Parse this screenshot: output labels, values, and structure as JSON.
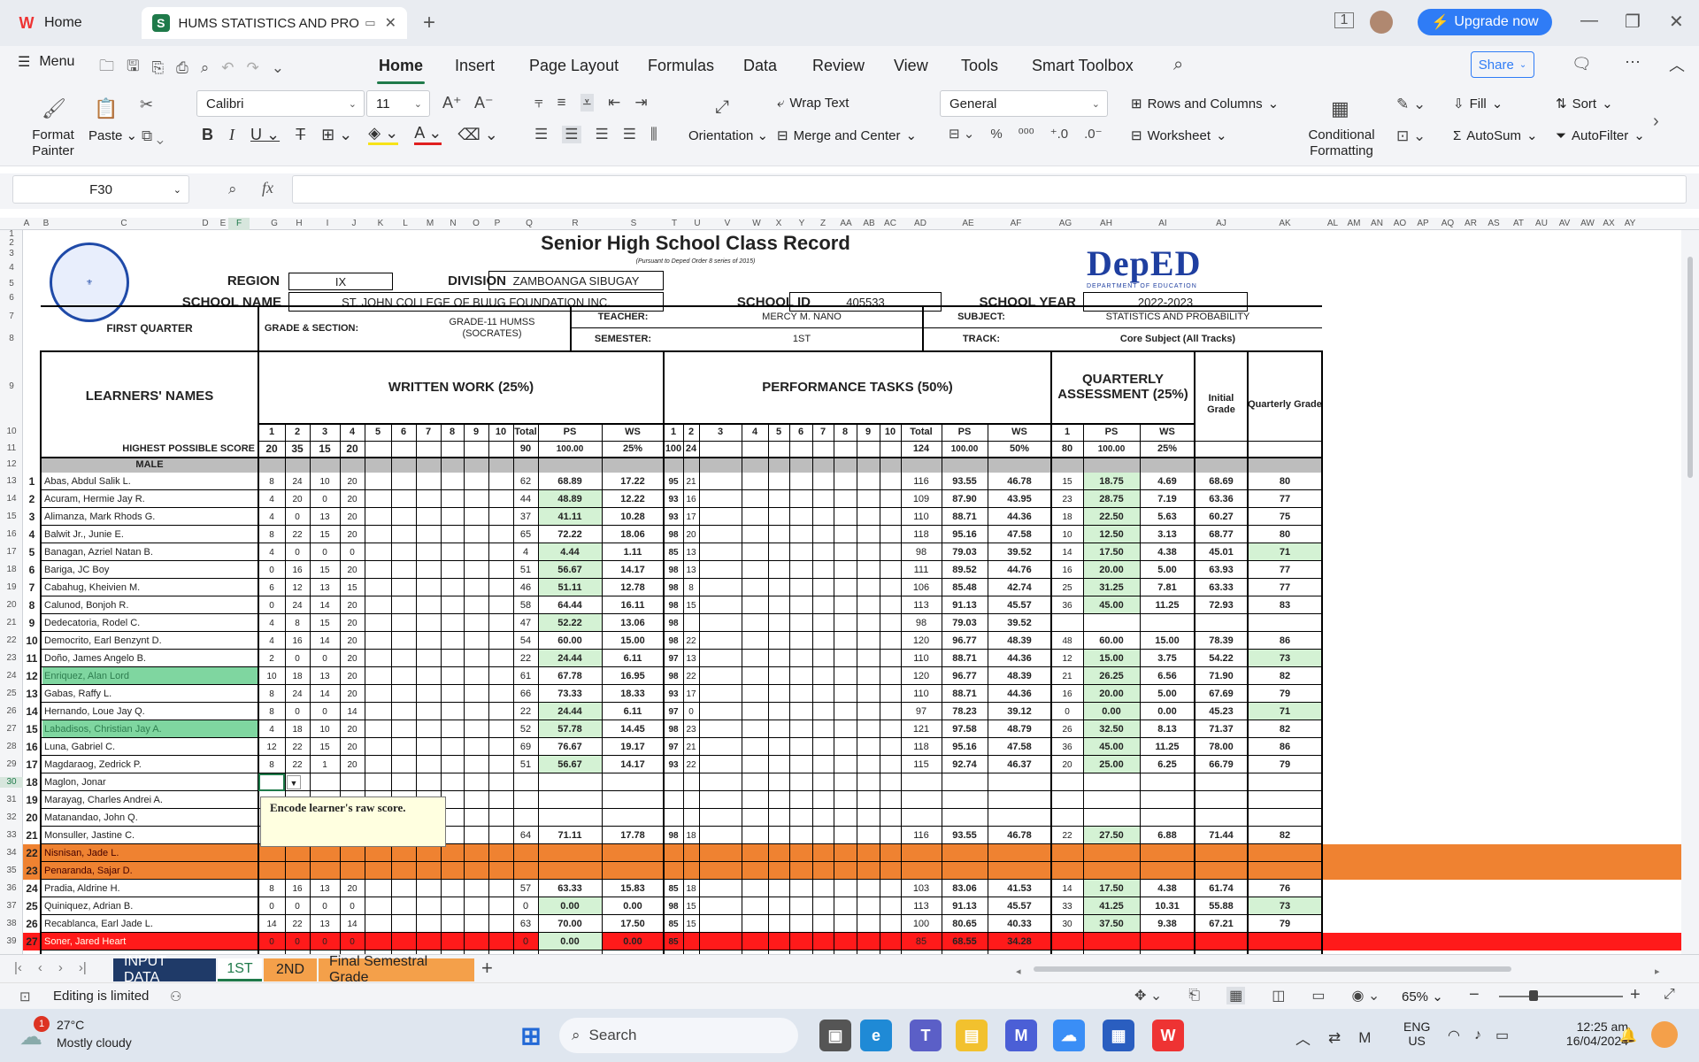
{
  "browser": {
    "tabs": [
      {
        "label": "Home",
        "icon": "wps-logo-icon"
      },
      {
        "label": "HUMS STATISTICS AND PROBA",
        "icon": "spreadsheet-icon"
      }
    ],
    "upgrade_label": "Upgrade now"
  },
  "menu": {
    "menu_label": "Menu",
    "items": [
      "Home",
      "Insert",
      "Page Layout",
      "Formulas",
      "Data",
      "Review",
      "View",
      "Tools",
      "Smart Toolbox"
    ],
    "share_label": "Share"
  },
  "ribbon": {
    "format_painter": "Format Painter",
    "paste": "Paste",
    "font_name": "Calibri",
    "font_size": "11",
    "wrap_text": "Wrap Text",
    "orientation": "Orientation",
    "merge_center": "Merge and Center",
    "number_format": "General",
    "rows_columns": "Rows and Columns",
    "worksheet": "Worksheet",
    "conditional_formatting": "Conditional Formatting",
    "fill": "Fill",
    "sort": "Sort",
    "autosum": "AutoSum",
    "autofilter": "AutoFilter"
  },
  "formula_bar": {
    "cell_ref": "F30",
    "fx": "fx",
    "value": ""
  },
  "columns": [
    "A",
    "B",
    "C",
    "D",
    "E",
    "F",
    "G",
    "H",
    "I",
    "J",
    "K",
    "L",
    "M",
    "N",
    "O",
    "P",
    "Q",
    "R",
    "S",
    "T",
    "U",
    "V",
    "W",
    "X",
    "Y",
    "Z",
    "AA",
    "AB",
    "AC",
    "AD",
    "AE",
    "AF",
    "AG",
    "AH",
    "AI",
    "AJ",
    "AK",
    "AL",
    "AM",
    "AN",
    "AO",
    "AP",
    "AQ",
    "AR",
    "AS",
    "AT",
    "AU",
    "AV",
    "AW",
    "AX",
    "AY"
  ],
  "rows": [
    "1",
    "2",
    "3",
    "4",
    "5",
    "6",
    "7",
    "8",
    "9",
    "10",
    "11",
    "12",
    "13",
    "14",
    "15",
    "16",
    "17",
    "18",
    "19",
    "20",
    "21",
    "22",
    "23",
    "24",
    "25",
    "26",
    "27",
    "28",
    "29",
    "30",
    "31",
    "32",
    "33",
    "34",
    "35",
    "36",
    "37",
    "38",
    "39"
  ],
  "record": {
    "title": "Senior High School Class Record",
    "subtitle": "(Pursuant to Deped Order 8 series of 2015)",
    "region_label": "REGION",
    "region": "IX",
    "division_label": "DIVISION",
    "division": "ZAMBOANGA SIBUGAY",
    "school_name_label": "SCHOOL NAME",
    "school_name": "ST. JOHN COLLEGE OF BUUG FOUNDATION INC.",
    "school_id_label": "SCHOOL ID",
    "school_id": "405533",
    "school_year_label": "SCHOOL YEAR",
    "school_year": "2022-2023",
    "deped_logo": "DepED",
    "deped_sub": "DEPARTMENT OF EDUCATION",
    "quarter": "FIRST QUARTER",
    "grade_section_label": "GRADE & SECTION:",
    "grade_section": "GRADE-11 HUMSS (SOCRATES)",
    "teacher_label": "TEACHER:",
    "teacher": "MERCY M. NANO",
    "subject_label": "SUBJECT:",
    "subject": "STATISTICS AND PROBABILITY",
    "semester_label": "SEMESTER:",
    "semester": "1ST",
    "track_label": "TRACK:",
    "track": "Core Subject (All Tracks)",
    "learners_names": "LEARNERS' NAMES",
    "written_work": "WRITTEN WORK (25%)",
    "performance_tasks": "PERFORMANCE TASKS (50%)",
    "quarterly_assessment": "QUARTERLY ASSESSMENT (25%)",
    "initial_grade": "Initial Grade",
    "quarterly_grade": "Quarterly Grade",
    "total": "Total",
    "ps": "PS",
    "ws": "WS",
    "hps_label": "HIGHEST POSSIBLE SCORE",
    "hps": {
      "ww": [
        "20",
        "35",
        "15",
        "20"
      ],
      "ww_total": "90",
      "ww_ps": "100.00",
      "ww_ws": "25%",
      "pt": [
        "100",
        "24"
      ],
      "pt_total": "124",
      "pt_ps": "100.00",
      "pt_ws": "50%",
      "qa": "80",
      "qa_ps": "100.00",
      "qa_ws": "25%"
    },
    "male_label": "MALE",
    "tooltip": "Encode learner's raw score."
  },
  "learners": [
    {
      "n": "1",
      "name": "Abas, Abdul Salik L.",
      "ww": [
        "8",
        "24",
        "10",
        "20"
      ],
      "wt": "62",
      "wps": "68.89",
      "wws": "17.22",
      "pt": [
        "95",
        "21"
      ],
      "pt_t": "116",
      "pps": "93.55",
      "pws": "46.78",
      "qa": "15",
      "qps": "18.75",
      "qws": "4.69",
      "ig": "68.69",
      "qg": "80",
      "row": "13"
    },
    {
      "n": "2",
      "name": "Acuram, Hermie Jay R.",
      "ww": [
        "4",
        "20",
        "0",
        "20"
      ],
      "wt": "44",
      "wps": "48.89",
      "wws": "12.22",
      "pt": [
        "93",
        "16"
      ],
      "pt_t": "109",
      "pps": "87.90",
      "pws": "43.95",
      "qa": "23",
      "qps": "28.75",
      "qws": "7.19",
      "ig": "63.36",
      "qg": "77",
      "row": "14"
    },
    {
      "n": "3",
      "name": "Alimanza, Mark Rhods G.",
      "ww": [
        "4",
        "0",
        "13",
        "20"
      ],
      "wt": "37",
      "wps": "41.11",
      "wws": "10.28",
      "pt": [
        "93",
        "17"
      ],
      "pt_t": "110",
      "pps": "88.71",
      "pws": "44.36",
      "qa": "18",
      "qps": "22.50",
      "qws": "5.63",
      "ig": "60.27",
      "qg": "75",
      "row": "15"
    },
    {
      "n": "4",
      "name": "Balwit Jr., Junie E.",
      "ww": [
        "8",
        "22",
        "15",
        "20"
      ],
      "wt": "65",
      "wps": "72.22",
      "wws": "18.06",
      "pt": [
        "98",
        "20"
      ],
      "pt_t": "118",
      "pps": "95.16",
      "pws": "47.58",
      "qa": "10",
      "qps": "12.50",
      "qws": "3.13",
      "ig": "68.77",
      "qg": "80",
      "row": "16"
    },
    {
      "n": "5",
      "name": "Banagan, Azriel Natan B.",
      "ww": [
        "4",
        "0",
        "0",
        "0"
      ],
      "wt": "4",
      "wps": "4.44",
      "wws": "1.11",
      "pt": [
        "85",
        "13"
      ],
      "pt_t": "98",
      "pps": "79.03",
      "pws": "39.52",
      "qa": "14",
      "qps": "17.50",
      "qws": "4.38",
      "ig": "45.01",
      "qg": "71",
      "row": "17"
    },
    {
      "n": "6",
      "name": "Bariga, JC Boy",
      "ww": [
        "0",
        "16",
        "15",
        "20"
      ],
      "wt": "51",
      "wps": "56.67",
      "wws": "14.17",
      "pt": [
        "98",
        "13"
      ],
      "pt_t": "111",
      "pps": "89.52",
      "pws": "44.76",
      "qa": "16",
      "qps": "20.00",
      "qws": "5.00",
      "ig": "63.93",
      "qg": "77",
      "row": "18"
    },
    {
      "n": "7",
      "name": "Cabahug, Kheivien M.",
      "ww": [
        "6",
        "12",
        "13",
        "15"
      ],
      "wt": "46",
      "wps": "51.11",
      "wws": "12.78",
      "pt": [
        "98",
        "8"
      ],
      "pt_t": "106",
      "pps": "85.48",
      "pws": "42.74",
      "qa": "25",
      "qps": "31.25",
      "qws": "7.81",
      "ig": "63.33",
      "qg": "77",
      "row": "19"
    },
    {
      "n": "8",
      "name": "Calunod, Bonjoh R.",
      "ww": [
        "0",
        "24",
        "14",
        "20"
      ],
      "wt": "58",
      "wps": "64.44",
      "wws": "16.11",
      "pt": [
        "98",
        "15"
      ],
      "pt_t": "113",
      "pps": "91.13",
      "pws": "45.57",
      "qa": "36",
      "qps": "45.00",
      "qws": "11.25",
      "ig": "72.93",
      "qg": "83",
      "row": "20"
    },
    {
      "n": "9",
      "name": "Dedecatoria, Rodel C.",
      "ww": [
        "4",
        "8",
        "15",
        "20"
      ],
      "wt": "47",
      "wps": "52.22",
      "wws": "13.06",
      "pt": [
        "98",
        ""
      ],
      "pt_t": "98",
      "pps": "79.03",
      "pws": "39.52",
      "qa": "",
      "qps": "",
      "qws": "",
      "ig": "",
      "qg": "",
      "row": "21"
    },
    {
      "n": "10",
      "name": "Democrito, Earl Benzynt D.",
      "ww": [
        "4",
        "16",
        "14",
        "20"
      ],
      "wt": "54",
      "wps": "60.00",
      "wws": "15.00",
      "pt": [
        "98",
        "22"
      ],
      "pt_t": "120",
      "pps": "96.77",
      "pws": "48.39",
      "qa": "48",
      "qps": "60.00",
      "qws": "15.00",
      "ig": "78.39",
      "qg": "86",
      "row": "22"
    },
    {
      "n": "11",
      "name": "Doño, James Angelo B.",
      "ww": [
        "2",
        "0",
        "0",
        "20"
      ],
      "wt": "22",
      "wps": "24.44",
      "wws": "6.11",
      "pt": [
        "97",
        "13"
      ],
      "pt_t": "110",
      "pps": "88.71",
      "pws": "44.36",
      "qa": "12",
      "qps": "15.00",
      "qws": "3.75",
      "ig": "54.22",
      "qg": "73",
      "row": "23"
    },
    {
      "n": "12",
      "name": "Enriquez, Alan Lord",
      "ww": [
        "10",
        "18",
        "13",
        "20"
      ],
      "wt": "61",
      "wps": "67.78",
      "wws": "16.95",
      "pt": [
        "98",
        "22"
      ],
      "pt_t": "120",
      "pps": "96.77",
      "pws": "48.39",
      "qa": "21",
      "qps": "26.25",
      "qws": "6.56",
      "ig": "71.90",
      "qg": "82",
      "row": "24"
    },
    {
      "n": "13",
      "name": "Gabas, Raffy L.",
      "ww": [
        "8",
        "24",
        "14",
        "20"
      ],
      "wt": "66",
      "wps": "73.33",
      "wws": "18.33",
      "pt": [
        "93",
        "17"
      ],
      "pt_t": "110",
      "pps": "88.71",
      "pws": "44.36",
      "qa": "16",
      "qps": "20.00",
      "qws": "5.00",
      "ig": "67.69",
      "qg": "79",
      "row": "25"
    },
    {
      "n": "14",
      "name": "Hernando, Loue Jay Q.",
      "ww": [
        "8",
        "0",
        "0",
        "14"
      ],
      "wt": "22",
      "wps": "24.44",
      "wws": "6.11",
      "pt": [
        "97",
        "0"
      ],
      "pt_t": "97",
      "pps": "78.23",
      "pws": "39.12",
      "qa": "0",
      "qps": "0.00",
      "qws": "0.00",
      "ig": "45.23",
      "qg": "71",
      "row": "26"
    },
    {
      "n": "15",
      "name": "Labadisos, Christian Jay A.",
      "ww": [
        "4",
        "18",
        "10",
        "20"
      ],
      "wt": "52",
      "wps": "57.78",
      "wws": "14.45",
      "pt": [
        "98",
        "23"
      ],
      "pt_t": "121",
      "pps": "97.58",
      "pws": "48.79",
      "qa": "26",
      "qps": "32.50",
      "qws": "8.13",
      "ig": "71.37",
      "qg": "82",
      "row": "27"
    },
    {
      "n": "16",
      "name": "Luna, Gabriel C.",
      "ww": [
        "12",
        "22",
        "15",
        "20"
      ],
      "wt": "69",
      "wps": "76.67",
      "wws": "19.17",
      "pt": [
        "97",
        "21"
      ],
      "pt_t": "118",
      "pps": "95.16",
      "pws": "47.58",
      "qa": "36",
      "qps": "45.00",
      "qws": "11.25",
      "ig": "78.00",
      "qg": "86",
      "row": "28"
    },
    {
      "n": "17",
      "name": "Magdaraog, Zedrick P.",
      "ww": [
        "8",
        "22",
        "1",
        "20"
      ],
      "wt": "51",
      "wps": "56.67",
      "wws": "14.17",
      "pt": [
        "93",
        "22"
      ],
      "pt_t": "115",
      "pps": "92.74",
      "pws": "46.37",
      "qa": "20",
      "qps": "25.00",
      "qws": "6.25",
      "ig": "66.79",
      "qg": "79",
      "row": "29"
    },
    {
      "n": "18",
      "name": "Maglon, Jonar",
      "ww": [
        "",
        "",
        "",
        ""
      ],
      "wt": "",
      "wps": "",
      "wws": "",
      "pt": [
        "",
        ""
      ],
      "pt_t": "",
      "pps": "",
      "pws": "",
      "qa": "",
      "qps": "",
      "qws": "",
      "ig": "",
      "qg": "",
      "row": "30"
    },
    {
      "n": "19",
      "name": "Marayag, Charles Andrei A.",
      "ww": [
        "",
        "",
        "",
        ""
      ],
      "wt": "",
      "wps": "",
      "wws": "",
      "pt": [
        "",
        ""
      ],
      "pt_t": "",
      "pps": "",
      "pws": "",
      "qa": "",
      "qps": "",
      "qws": "",
      "ig": "",
      "qg": "",
      "row": "31"
    },
    {
      "n": "20",
      "name": "Matanandao, John Q.",
      "ww": [
        "",
        "",
        "",
        ""
      ],
      "wt": "",
      "wps": "",
      "wws": "",
      "pt": [
        "",
        ""
      ],
      "pt_t": "",
      "pps": "",
      "pws": "",
      "qa": "",
      "qps": "",
      "qws": "",
      "ig": "",
      "qg": "",
      "row": "32"
    },
    {
      "n": "21",
      "name": "Monsuller, Jastine C.",
      "ww": [
        "",
        "",
        "",
        ""
      ],
      "wt": "64",
      "wps": "71.11",
      "wws": "17.78",
      "pt": [
        "98",
        "18"
      ],
      "pt_t": "116",
      "pps": "93.55",
      "pws": "46.78",
      "qa": "22",
      "qps": "27.50",
      "qws": "6.88",
      "ig": "71.44",
      "qg": "82",
      "row": "33"
    },
    {
      "n": "22",
      "name": "Nisnisan, Jade L.",
      "ww": [
        "",
        "",
        "",
        ""
      ],
      "wt": "",
      "wps": "",
      "wws": "",
      "pt": [
        "",
        ""
      ],
      "pt_t": "",
      "pps": "",
      "pws": "",
      "qa": "",
      "qps": "",
      "qws": "",
      "ig": "",
      "qg": "",
      "row": "34"
    },
    {
      "n": "23",
      "name": "Penaranda, Sajar D.",
      "ww": [
        "",
        "",
        "",
        ""
      ],
      "wt": "",
      "wps": "",
      "wws": "",
      "pt": [
        "",
        ""
      ],
      "pt_t": "",
      "pps": "",
      "pws": "",
      "qa": "",
      "qps": "",
      "qws": "",
      "ig": "",
      "qg": "",
      "row": "35"
    },
    {
      "n": "24",
      "name": "Pradia, Aldrine H.",
      "ww": [
        "8",
        "16",
        "13",
        "20"
      ],
      "wt": "57",
      "wps": "63.33",
      "wws": "15.83",
      "pt": [
        "85",
        "18"
      ],
      "pt_t": "103",
      "pps": "83.06",
      "pws": "41.53",
      "qa": "14",
      "qps": "17.50",
      "qws": "4.38",
      "ig": "61.74",
      "qg": "76",
      "row": "36"
    },
    {
      "n": "25",
      "name": "Quiniquez, Adrian B.",
      "ww": [
        "0",
        "0",
        "0",
        "0"
      ],
      "wt": "0",
      "wps": "0.00",
      "wws": "0.00",
      "pt": [
        "98",
        "15"
      ],
      "pt_t": "113",
      "pps": "91.13",
      "pws": "45.57",
      "qa": "33",
      "qps": "41.25",
      "qws": "10.31",
      "ig": "55.88",
      "qg": "73",
      "row": "37"
    },
    {
      "n": "26",
      "name": "Recablanca, Earl Jade L.",
      "ww": [
        "14",
        "22",
        "13",
        "14"
      ],
      "wt": "63",
      "wps": "70.00",
      "wws": "17.50",
      "pt": [
        "85",
        "15"
      ],
      "pt_t": "100",
      "pps": "80.65",
      "pws": "40.33",
      "qa": "30",
      "qps": "37.50",
      "qws": "9.38",
      "ig": "67.21",
      "qg": "79",
      "row": "38"
    },
    {
      "n": "27",
      "name": "Soner, Jared Heart",
      "ww": [
        "0",
        "0",
        "0",
        "0"
      ],
      "wt": "0",
      "wps": "0.00",
      "wws": "0.00",
      "pt": [
        "85",
        ""
      ],
      "pt_t": "85",
      "pps": "68.55",
      "pws": "34.28",
      "qa": "",
      "qps": "",
      "qws": "",
      "ig": "",
      "qg": "",
      "row": "39"
    }
  ],
  "sheet_tabs": [
    "INPUT DATA",
    "1ST",
    "2ND",
    "Final Semestral Grade"
  ],
  "status": {
    "editing": "Editing is limited",
    "zoom": "65%"
  },
  "taskbar": {
    "weather_temp": "27°C",
    "weather_desc": "Mostly cloudy",
    "weather_badge": "1",
    "search": "Search",
    "lang1": "ENG",
    "lang2": "US",
    "time": "12:25 am",
    "date": "16/04/2024"
  },
  "colors": {
    "accent": "#1f7a4a",
    "orange": "#ef8231",
    "red": "#ff1a1a",
    "green_cell": "#d4f2d4",
    "highlight_name": "#7fd6a0",
    "tab_navy": "#1f3a68",
    "tab_orange": "#f4a04a"
  }
}
